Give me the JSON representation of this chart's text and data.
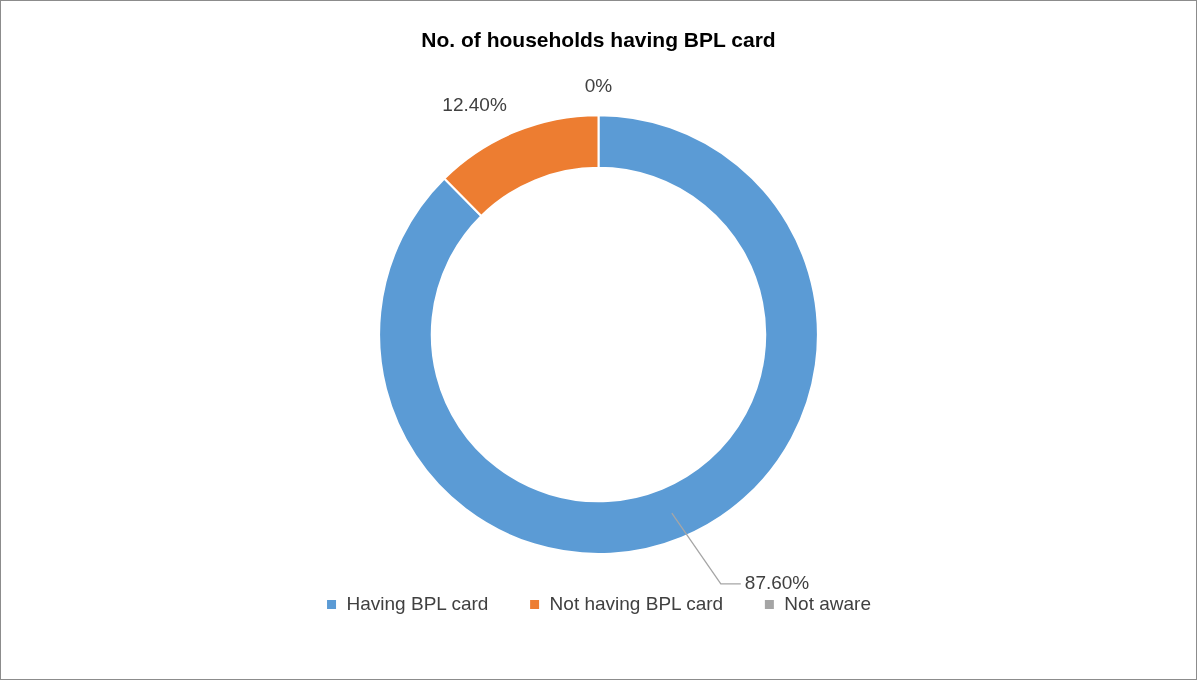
{
  "chart_data": {
    "type": "donut",
    "title": "No. of households having BPL card",
    "categories": [
      "Having BPL card",
      "Not having BPL card",
      "Not aware"
    ],
    "values": [
      87.6,
      12.4,
      0
    ],
    "colors": [
      "#5b9bd5",
      "#ed7d31",
      "#a5a5a5"
    ],
    "value_labels": [
      "87.60%",
      "12.40%",
      "0%"
    ],
    "legend": "bottom"
  }
}
